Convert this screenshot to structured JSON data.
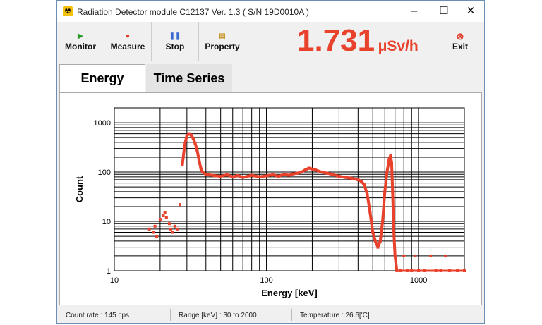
{
  "window": {
    "title": "Radiation Detector module C12137 Ver. 1.3 ( S/N 19D0010A )",
    "icon": "radiation-icon",
    "controls": [
      "minimize-icon",
      "maximize-icon",
      "close-icon"
    ]
  },
  "toolbar": {
    "monitor": "Monitor",
    "measure": "Measure",
    "stop": "Stop",
    "property": "Property",
    "exit": "Exit"
  },
  "reading": {
    "value": "1.731",
    "unit": "μSv/h",
    "color": "#e8412c"
  },
  "tabs": [
    {
      "label": "Energy",
      "active": true
    },
    {
      "label": "Time Series",
      "active": false
    }
  ],
  "status": {
    "count_rate": "Count rate : 145 cps",
    "range": "Range [keV] : 30 to 2000",
    "temperature": "Temperature : 26.6['C]"
  },
  "chart_data": {
    "type": "scatter",
    "xlabel": "Energy [keV]",
    "ylabel": "Count",
    "xscale": "log",
    "yscale": "log",
    "xlim": [
      10,
      2000
    ],
    "ylim": [
      1,
      2000
    ],
    "grid": true,
    "xticks": [
      10,
      100,
      1000
    ],
    "yticks": [
      1,
      10,
      100,
      1000
    ],
    "xtick_labels": [
      "10",
      "100",
      "1000"
    ],
    "ytick_labels": [
      "1",
      "10",
      "100",
      "1000"
    ],
    "color": "#e8412c",
    "points": [
      [
        17,
        7
      ],
      [
        18,
        6
      ],
      [
        18.5,
        8
      ],
      [
        19,
        5
      ],
      [
        20,
        11
      ],
      [
        21,
        13
      ],
      [
        21.5,
        15
      ],
      [
        22,
        12
      ],
      [
        23,
        9
      ],
      [
        23.5,
        7
      ],
      [
        24,
        6
      ],
      [
        25,
        8
      ],
      [
        26,
        7
      ],
      [
        27,
        22
      ],
      [
        28,
        140
      ],
      [
        29,
        350
      ],
      [
        30,
        550
      ],
      [
        31,
        600
      ],
      [
        32,
        560
      ],
      [
        33,
        480
      ],
      [
        34,
        380
      ],
      [
        35,
        280
      ],
      [
        36,
        180
      ],
      [
        37,
        120
      ],
      [
        38,
        100
      ],
      [
        40,
        90
      ],
      [
        45,
        85
      ],
      [
        50,
        82
      ],
      [
        55,
        88
      ],
      [
        60,
        80
      ],
      [
        65,
        85
      ],
      [
        70,
        78
      ],
      [
        80,
        86
      ],
      [
        90,
        80
      ],
      [
        100,
        84
      ],
      [
        110,
        88
      ],
      [
        120,
        82
      ],
      [
        130,
        90
      ],
      [
        140,
        86
      ],
      [
        150,
        92
      ],
      [
        160,
        95
      ],
      [
        170,
        100
      ],
      [
        180,
        110
      ],
      [
        190,
        120
      ],
      [
        200,
        115
      ],
      [
        210,
        110
      ],
      [
        230,
        100
      ],
      [
        250,
        95
      ],
      [
        270,
        90
      ],
      [
        300,
        82
      ],
      [
        330,
        78
      ],
      [
        360,
        75
      ],
      [
        400,
        70
      ],
      [
        420,
        65
      ],
      [
        440,
        55
      ],
      [
        460,
        35
      ],
      [
        480,
        15
      ],
      [
        500,
        6
      ],
      [
        520,
        4
      ],
      [
        540,
        3
      ],
      [
        560,
        4
      ],
      [
        580,
        10
      ],
      [
        600,
        40
      ],
      [
        620,
        100
      ],
      [
        640,
        180
      ],
      [
        655,
        220
      ],
      [
        665,
        150
      ],
      [
        675,
        40
      ],
      [
        685,
        8
      ],
      [
        700,
        2
      ],
      [
        720,
        1
      ],
      [
        760,
        1
      ],
      [
        800,
        2
      ],
      [
        850,
        1
      ],
      [
        900,
        1
      ],
      [
        950,
        2
      ],
      [
        1000,
        1
      ],
      [
        1100,
        1
      ],
      [
        1200,
        2
      ],
      [
        1300,
        1
      ],
      [
        1400,
        1
      ],
      [
        1500,
        2
      ],
      [
        1600,
        1
      ],
      [
        1800,
        1
      ],
      [
        2000,
        1
      ]
    ]
  }
}
